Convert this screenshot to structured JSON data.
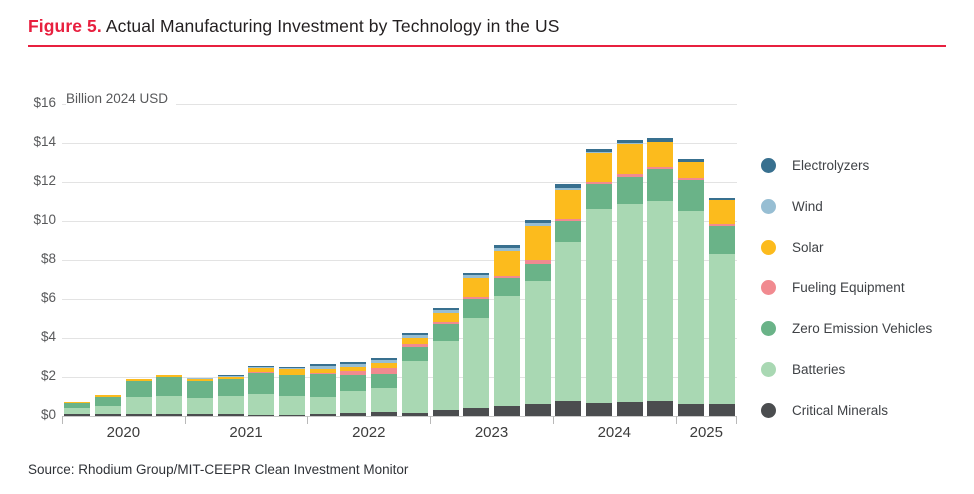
{
  "figure": {
    "label": "Figure 5.",
    "title": "Actual Manufacturing Investment by Technology in the US"
  },
  "source": "Source: Rhodium Group/MIT-CEEPR Clean Investment Monitor",
  "colors": {
    "accent_red": "#e8203f",
    "title_text": "#231f20",
    "axis_text": "#58595b",
    "gridline": "#e3e3e3"
  },
  "chart_data": {
    "type": "bar",
    "stacked": true,
    "title": "Actual Manufacturing Investment by Technology in the US",
    "unit_label": "Billion 2024 USD",
    "ylabel": "Billion 2024 USD",
    "ylim": [
      0,
      16
    ],
    "y_ticks": [
      "$16",
      "$14",
      "$12",
      "$10",
      "$8",
      "$6",
      "$4",
      "$2",
      "$0"
    ],
    "grid": true,
    "legend_position": "right",
    "x_year_labels": [
      "2020",
      "2021",
      "2022",
      "2023",
      "2024",
      "2025"
    ],
    "bars_per_year": [
      4,
      4,
      4,
      4,
      4,
      2
    ],
    "categories": [
      "2020 Q1",
      "2020 Q2",
      "2020 Q3",
      "2020 Q4",
      "2021 Q1",
      "2021 Q2",
      "2021 Q3",
      "2021 Q4",
      "2022 Q1",
      "2022 Q2",
      "2022 Q3",
      "2022 Q4",
      "2023 Q1",
      "2023 Q2",
      "2023 Q3",
      "2023 Q4",
      "2024 Q1",
      "2024 Q2",
      "2024 Q3",
      "2024 Q4",
      "2025 Q1",
      "2025 Q2"
    ],
    "series": [
      {
        "name": "Critical Minerals",
        "color": "#4b4d4f",
        "values": [
          0.08,
          0.09,
          0.1,
          0.11,
          0.1,
          0.11,
          0.05,
          0.06,
          0.1,
          0.17,
          0.21,
          0.17,
          0.29,
          0.39,
          0.51,
          0.6,
          0.77,
          0.68,
          0.72,
          0.77,
          0.63,
          0.63
        ]
      },
      {
        "name": "Batteries",
        "color": "#a9d8b3",
        "values": [
          0.32,
          0.43,
          0.89,
          0.94,
          0.81,
          0.92,
          1.06,
          0.97,
          0.9,
          1.11,
          1.21,
          2.65,
          3.56,
          4.65,
          5.64,
          6.32,
          8.15,
          9.95,
          10.14,
          10.26,
          9.88,
          7.69
        ]
      },
      {
        "name": "Zero Emission Vehicles",
        "color": "#6ab388",
        "values": [
          0.26,
          0.48,
          0.79,
          0.94,
          0.9,
          0.89,
          1.11,
          1.08,
          1.15,
          0.81,
          0.75,
          0.72,
          0.87,
          0.94,
          0.91,
          0.89,
          1.08,
          1.25,
          1.42,
          1.62,
          1.59,
          1.45
        ]
      },
      {
        "name": "Fueling Equipment",
        "color": "#f18a90",
        "values": [
          0,
          0,
          0,
          0,
          0,
          0,
          0.02,
          0.02,
          0.05,
          0.22,
          0.27,
          0.17,
          0.12,
          0.12,
          0.12,
          0.17,
          0.12,
          0.12,
          0.12,
          0.13,
          0.12,
          0.1
        ]
      },
      {
        "name": "Solar",
        "color": "#fcbb1d",
        "values": [
          0.08,
          0.08,
          0.1,
          0.11,
          0.08,
          0.1,
          0.23,
          0.29,
          0.21,
          0.22,
          0.29,
          0.27,
          0.46,
          0.99,
          1.28,
          1.76,
          1.47,
          1.5,
          1.53,
          1.27,
          0.8,
          1.2
        ]
      },
      {
        "name": "Wind",
        "color": "#97bed3",
        "values": [
          0,
          0,
          0,
          0,
          0.04,
          0.05,
          0.06,
          0.06,
          0.14,
          0.14,
          0.15,
          0.17,
          0.12,
          0.12,
          0.17,
          0.15,
          0.12,
          0.05,
          0.05,
          0.03,
          0,
          0
        ]
      },
      {
        "name": "Electrolyzers",
        "color": "#38708f",
        "values": [
          0,
          0,
          0,
          0,
          0.04,
          0.04,
          0.06,
          0.06,
          0.1,
          0.1,
          0.1,
          0.12,
          0.14,
          0.14,
          0.14,
          0.15,
          0.17,
          0.15,
          0.17,
          0.17,
          0.14,
          0.12
        ]
      }
    ],
    "legend": [
      {
        "label": "Electrolyzers",
        "color": "#38708f"
      },
      {
        "label": "Wind",
        "color": "#97bed3"
      },
      {
        "label": "Solar",
        "color": "#fcbb1d"
      },
      {
        "label": "Fueling Equipment",
        "color": "#f18a90"
      },
      {
        "label": "Zero Emission Vehicles",
        "color": "#6ab388"
      },
      {
        "label": "Batteries",
        "color": "#a9d8b3"
      },
      {
        "label": "Critical Minerals",
        "color": "#4b4d4f"
      }
    ]
  }
}
